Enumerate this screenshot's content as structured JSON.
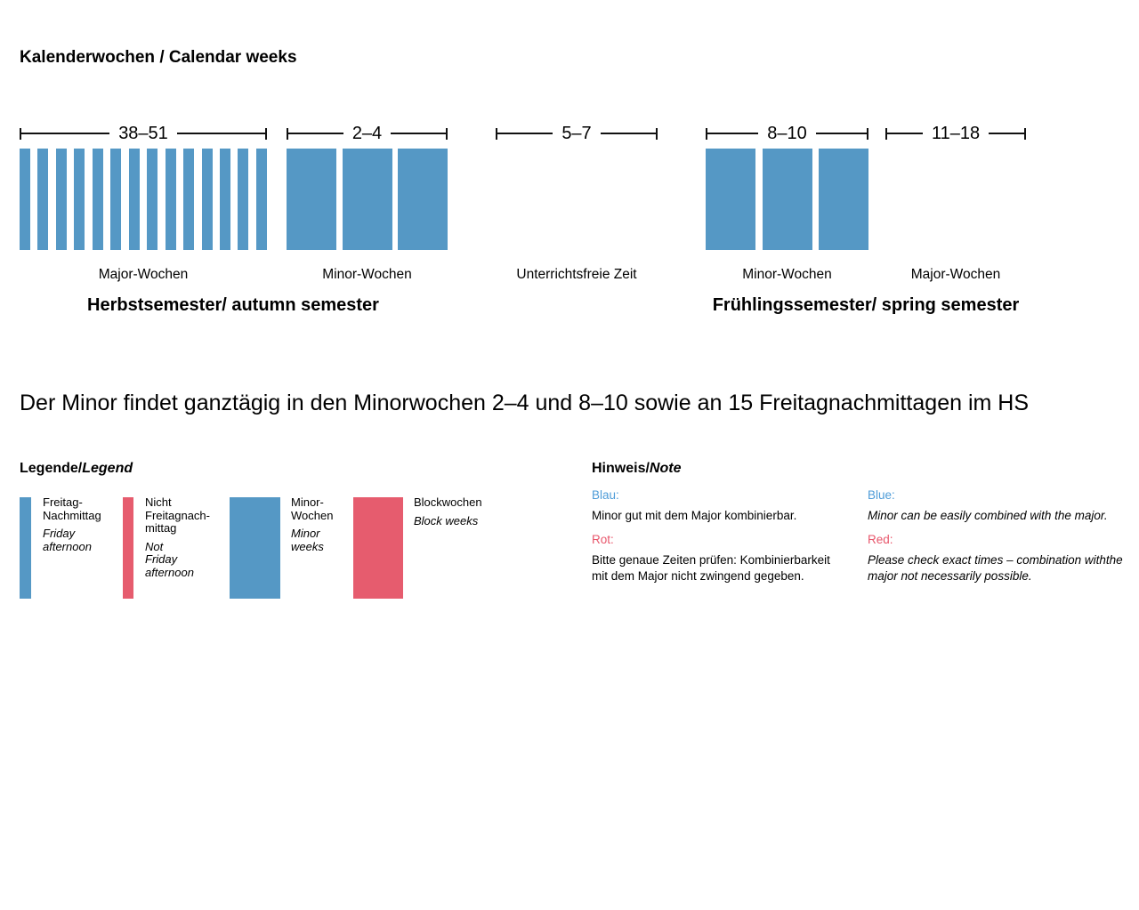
{
  "title": "Kalenderwochen / Calendar weeks",
  "colors": {
    "bar_blue": "#5598C5",
    "bar_red": "#E65C6E",
    "text_blue": "#4E9CD8",
    "text_red": "#E8566B"
  },
  "timeline": {
    "sections": [
      {
        "range": "38–51",
        "label": "Major-Wochen",
        "bars": 14,
        "bar_type": "thin"
      },
      {
        "range": "2–4",
        "label": "Minor-Wochen",
        "bars": 3,
        "bar_type": "wide"
      },
      {
        "range": "5–7",
        "label": "Unterrichtsfreie Zeit",
        "bars": 0,
        "bar_type": "none"
      },
      {
        "range": "8–10",
        "label": "Minor-Wochen",
        "bars": 3,
        "bar_type": "wide"
      },
      {
        "range": "11–18",
        "label": "Major-Wochen",
        "bars": 0,
        "bar_type": "none"
      }
    ],
    "semesters": {
      "autumn": "Herbstsemester/ autumn semester",
      "spring": "Frühlingssemester/ spring semester"
    }
  },
  "statement": "Der Minor findet ganztägig in den Minorwochen 2–4 und 8–10 sowie an 15 Freitagnachmittagen im HS",
  "legend": {
    "heading_de": "Legende/",
    "heading_en": "Legend",
    "items": [
      {
        "color": "blue",
        "bar": "thin",
        "de": "Freitag-\nNachmittag",
        "en": "Friday\nafternoon"
      },
      {
        "color": "red",
        "bar": "thin",
        "de": "Nicht\nFreitagnach-\nmittag",
        "en": "Not\nFriday\nafternoon"
      },
      {
        "color": "blue",
        "bar": "wide",
        "de": "Minor-\nWochen",
        "en": "Minor\nweeks"
      },
      {
        "color": "red",
        "bar": "wide",
        "de": "Blockwochen",
        "en": "Block weeks"
      }
    ]
  },
  "note": {
    "heading_de": "Hinweis/",
    "heading_en": "Note",
    "de": {
      "blue_label": "Blau:",
      "blue_text": "Minor gut mit dem Major kombinierbar.",
      "red_label": "Rot:",
      "red_text": "Bitte genaue Zeiten prüfen: Kombinierbarkeit\nmit dem Major nicht zwingend gegeben."
    },
    "en": {
      "blue_label": "Blue:",
      "blue_text": "Minor can be easily combined with the major.",
      "red_label": "Red:",
      "red_text": "Please check exact times – combination withthe\nmajor not necessarily possible."
    }
  }
}
